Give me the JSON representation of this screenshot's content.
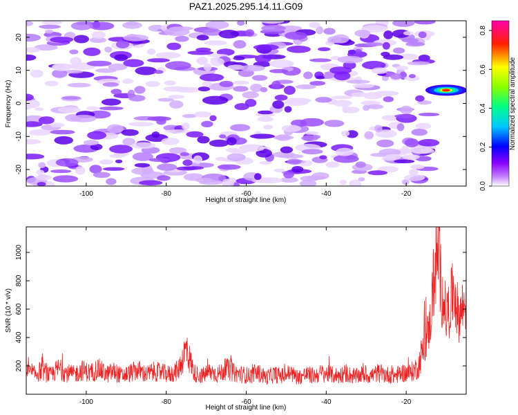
{
  "chart_data": [
    {
      "type": "heatmap",
      "title": "PAZ1.2025.295.14.11.G09",
      "xlabel": "Height of straight line (km)",
      "ylabel": "Frequency (Hz)",
      "xlim": [
        -115,
        -5
      ],
      "ylim": [
        -25,
        25
      ],
      "xticks": [
        -100,
        -80,
        -60,
        -40,
        -20
      ],
      "yticks": [
        -20,
        -10,
        0,
        10,
        20
      ],
      "colorbar": {
        "label": "Normalized spectral amplitude",
        "range": [
          0,
          0.85
        ],
        "ticks": [
          "0.0",
          "0.2",
          "0.4",
          "0.6",
          "0.8"
        ],
        "colors": [
          "#ffffff",
          "#8a00ff",
          "#0000ff",
          "#00ffff",
          "#00ff00",
          "#ffff00",
          "#ff0000",
          "#ff00aa"
        ]
      },
      "background_level": 0.08,
      "peak": {
        "x": -10,
        "y": 4,
        "value": 0.85
      }
    },
    {
      "type": "line",
      "xlabel": "Height of straight line (km)",
      "ylabel": "SNR (10 * v/v)",
      "xlim": [
        -115,
        -5
      ],
      "ylim": [
        0,
        1180
      ],
      "xticks": [
        -100,
        -80,
        -60,
        -40,
        -20
      ],
      "yticks": [
        200,
        400,
        600,
        800,
        1000
      ],
      "color": "#ee2222",
      "series": [
        {
          "name": "SNR",
          "x": [
            -115,
            -113,
            -111,
            -109,
            -107,
            -105,
            -103,
            -101,
            -99,
            -97,
            -95,
            -93,
            -91,
            -89,
            -87,
            -85,
            -83,
            -81,
            -79,
            -77,
            -75,
            -73,
            -71,
            -69,
            -67,
            -65,
            -63,
            -61,
            -59,
            -57,
            -55,
            -53,
            -51,
            -49,
            -47,
            -45,
            -43,
            -41,
            -39,
            -37,
            -35,
            -33,
            -31,
            -29,
            -27,
            -25,
            -23,
            -21,
            -19,
            -17,
            -16,
            -15,
            -14,
            -13,
            -12,
            -11,
            -10,
            -9,
            -8,
            -7,
            -6,
            -5
          ],
          "values": [
            160,
            140,
            170,
            130,
            180,
            150,
            140,
            170,
            150,
            180,
            140,
            160,
            130,
            150,
            170,
            140,
            160,
            150,
            140,
            170,
            320,
            150,
            130,
            160,
            140,
            180,
            150,
            140,
            130,
            150,
            120,
            140,
            130,
            150,
            120,
            140,
            130,
            150,
            140,
            130,
            150,
            120,
            140,
            130,
            150,
            140,
            130,
            150,
            150,
            190,
            300,
            380,
            500,
            850,
            1000,
            700,
            560,
            620,
            760,
            550,
            600,
            660
          ]
        }
      ]
    }
  ]
}
